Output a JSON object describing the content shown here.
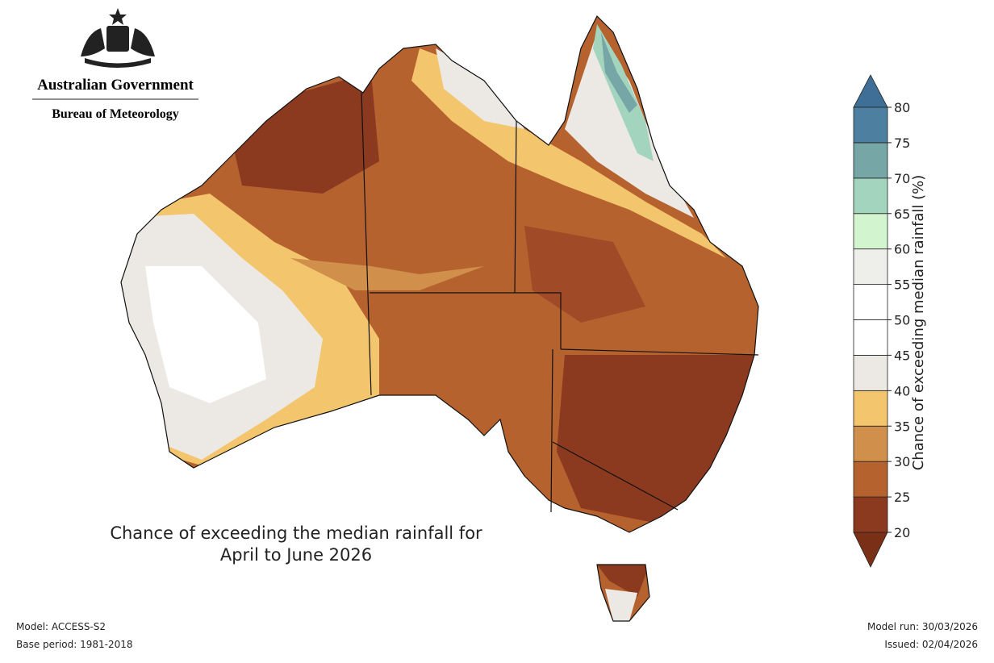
{
  "header": {
    "organisation": "Australian Government",
    "agency": "Bureau of Meteorology"
  },
  "map": {
    "title_lines": [
      "Chance of exceeding the median rainfall for",
      "April to June 2026"
    ]
  },
  "colorbar": {
    "label": "Chance of exceeding median rainfall (%)",
    "ticks": [
      20,
      25,
      30,
      35,
      40,
      45,
      50,
      55,
      60,
      65,
      70,
      75,
      80
    ],
    "colors": [
      "#8b3a20",
      "#b5622f",
      "#d08f4b",
      "#f3c56d",
      "#ece8e4",
      "#ffffff",
      "#ffffff",
      "#eeeeea",
      "#d2f5cf",
      "#a3d4be",
      "#76a6a6",
      "#4d7fa1"
    ],
    "under_color": "#7a2f17",
    "over_color": "#3f6f96"
  },
  "footer": {
    "model": "Model: ACCESS-S2",
    "base_period": "Base period: 1981-2018",
    "model_run": "Model run: 30/03/2026",
    "issued": "Issued: 02/04/2026"
  }
}
